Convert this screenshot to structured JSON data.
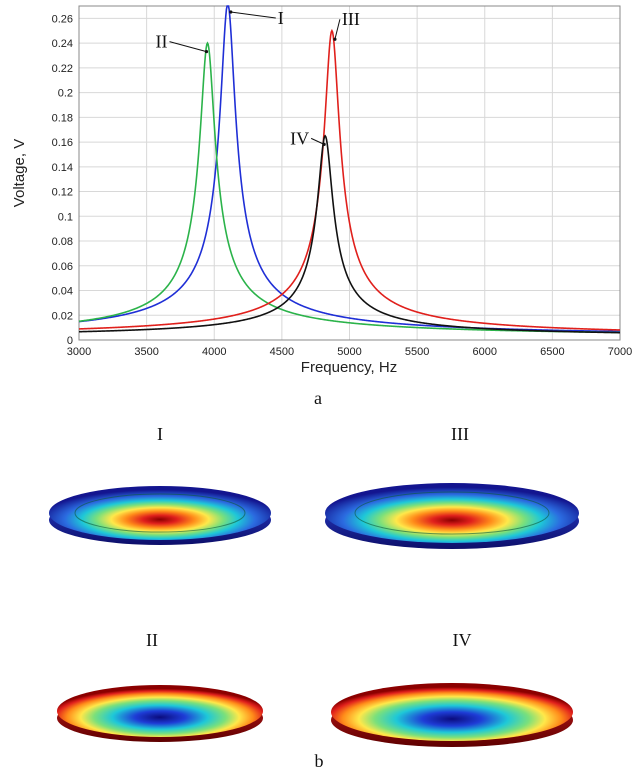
{
  "chart_data": {
    "type": "line",
    "xlabel": "Frequency, Hz",
    "ylabel": "Voltage, V",
    "xlim": [
      3000,
      7000
    ],
    "ylim": [
      0,
      0.27
    ],
    "xticks": [
      3000,
      3500,
      4000,
      4500,
      5000,
      5500,
      6000,
      6500,
      7000
    ],
    "yticks": [
      0,
      0.02,
      0.04,
      0.06,
      0.08,
      0.1,
      0.12,
      0.14,
      0.16,
      0.18,
      0.2,
      0.22,
      0.24,
      0.26
    ],
    "grid": true,
    "series": [
      {
        "name": "I",
        "color": "#1f2fd6",
        "peak_x": 4100,
        "peak_y": 0.27
      },
      {
        "name": "II",
        "color": "#2bb34a",
        "peak_x": 3950,
        "peak_y": 0.238
      },
      {
        "name": "III",
        "color": "#e0201c",
        "peak_x": 4870,
        "peak_y": 0.248
      },
      {
        "name": "IV",
        "color": "#111111",
        "peak_x": 4820,
        "peak_y": 0.163
      }
    ]
  },
  "captions": {
    "a": "a",
    "b": "b"
  },
  "mode_shapes": [
    {
      "label": "I",
      "pattern": "center-hot"
    },
    {
      "label": "III",
      "pattern": "center-hot"
    },
    {
      "label": "II",
      "pattern": "edge-hot"
    },
    {
      "label": "IV",
      "pattern": "edge-hot"
    }
  ]
}
